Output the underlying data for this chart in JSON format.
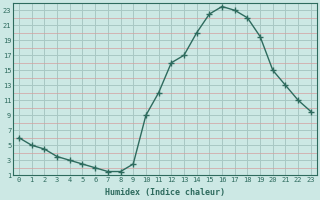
{
  "xlabel": "Humidex (Indice chaleur)",
  "x": [
    0,
    1,
    2,
    3,
    4,
    5,
    6,
    7,
    8,
    9,
    10,
    11,
    12,
    13,
    14,
    15,
    16,
    17,
    18,
    19,
    20,
    21,
    22,
    23
  ],
  "y": [
    6,
    5,
    4.5,
    3.5,
    3,
    2.5,
    2,
    1.5,
    1.5,
    2.5,
    9,
    12,
    16,
    17,
    20,
    22.5,
    23.5,
    23,
    22,
    19.5,
    15,
    13,
    11,
    9.5
  ],
  "line_color": "#2e6b5e",
  "marker": "+",
  "marker_size": 4,
  "bg_color": "#cce8e4",
  "grid_color_major": "#a8c8c4",
  "grid_color_minor": "#d4a0a0",
  "ylim": [
    1,
    24
  ],
  "xlim": [
    -0.5,
    23.5
  ],
  "yticks": [
    1,
    3,
    5,
    7,
    9,
    11,
    13,
    15,
    17,
    19,
    21,
    23
  ],
  "xticks": [
    0,
    1,
    2,
    3,
    4,
    5,
    6,
    7,
    8,
    9,
    10,
    11,
    12,
    13,
    14,
    15,
    16,
    17,
    18,
    19,
    20,
    21,
    22,
    23
  ],
  "tick_fontsize": 5,
  "xlabel_fontsize": 6,
  "line_width": 1.0
}
